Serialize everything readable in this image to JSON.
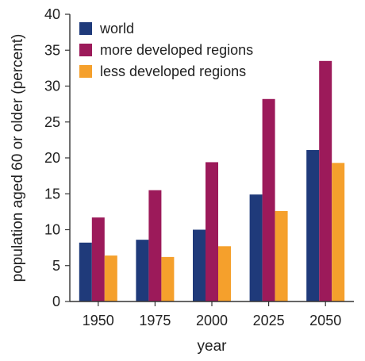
{
  "chart_data": {
    "type": "bar",
    "title": "",
    "xlabel": "year",
    "ylabel": "population aged 60 or older (percent)",
    "categories": [
      "1950",
      "1975",
      "2000",
      "2025",
      "2050"
    ],
    "series": [
      {
        "name": "world",
        "color": "#1f3a7a",
        "values": [
          8.2,
          8.6,
          10.0,
          14.9,
          21.1
        ]
      },
      {
        "name": "more developed regions",
        "color": "#9c1a5a",
        "values": [
          11.7,
          15.5,
          19.4,
          28.2,
          33.5
        ]
      },
      {
        "name": "less developed regions",
        "color": "#f5a02c",
        "values": [
          6.4,
          6.2,
          7.7,
          12.6,
          19.3
        ]
      }
    ],
    "ylim": [
      0,
      40
    ],
    "yticks": [
      0,
      5,
      10,
      15,
      20,
      25,
      30,
      35,
      40
    ],
    "grid": false,
    "legend_position": "top-left"
  }
}
